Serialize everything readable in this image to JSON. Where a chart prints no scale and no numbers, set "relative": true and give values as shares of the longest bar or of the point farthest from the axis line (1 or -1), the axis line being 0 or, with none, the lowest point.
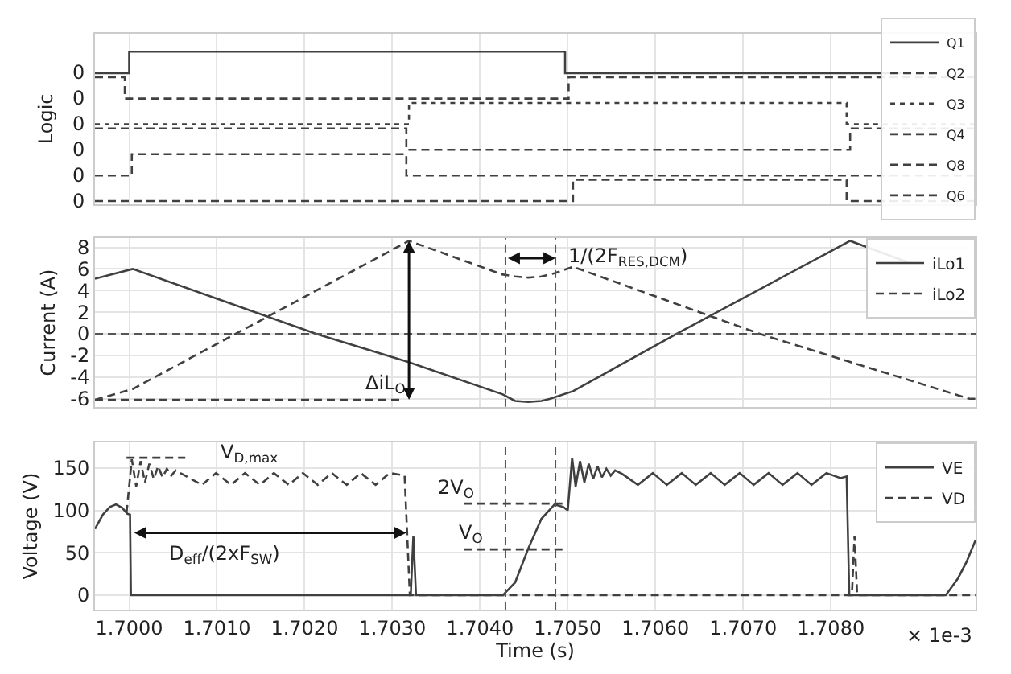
{
  "chart_data": [
    {
      "type": "step",
      "ylabel": "Logic",
      "relative": true,
      "xlim": [
        1.69961,
        1.70965
      ],
      "xticks": [
        {
          "value": 1.7,
          "label": null
        },
        {
          "value": 1.701,
          "label": null
        },
        {
          "value": 1.702,
          "label": null
        },
        {
          "value": 1.703,
          "label": null
        },
        {
          "value": 1.704,
          "label": null
        },
        {
          "value": 1.705,
          "label": null
        },
        {
          "value": 1.706,
          "label": null
        },
        {
          "value": 1.707,
          "label": null
        },
        {
          "value": 1.708,
          "label": null
        }
      ],
      "tick_labels": false,
      "grid": true,
      "legend": "right",
      "series": [
        {
          "name": "Q1",
          "color": "#404040",
          "line_style": "solid",
          "x": [
            1.69961,
            1.7,
            1.70497,
            1.7088
          ],
          "values": [
            0.857,
            1.0,
            0.857,
            0.857
          ]
        },
        {
          "name": "Q2",
          "color": "#404040",
          "line_style": "dashed",
          "x": [
            1.69961,
            1.69995,
            1.70501,
            1.70965
          ],
          "values": [
            0.829,
            0.686,
            0.829,
            0.829
          ]
        },
        {
          "name": "Q3",
          "color": "#404040",
          "line_style": "dotted",
          "x": [
            1.69961,
            1.70319,
            1.70818,
            1.70965
          ],
          "values": [
            0.514,
            0.657,
            0.514,
            0.514
          ]
        },
        {
          "name": "Q4",
          "color": "#404040",
          "line_style": "dashed",
          "x": [
            1.69961,
            1.70316,
            1.70822,
            1.70965
          ],
          "values": [
            0.486,
            0.343,
            0.486,
            0.486
          ]
        },
        {
          "name": "Q8",
          "color": "#404040",
          "line_style": "dashed",
          "x": [
            1.69961,
            1.70003,
            1.70316,
            1.70965
          ],
          "values": [
            0.171,
            0.314,
            0.171,
            0.171
          ]
        },
        {
          "name": "Q6",
          "color": "#404040",
          "line_style": "dashed",
          "x": [
            1.69961,
            1.70506,
            1.70818,
            1.70965
          ],
          "values": [
            0,
            0.143,
            0,
            0
          ]
        }
      ],
      "annotations": [
        "0",
        "0",
        "0",
        "0",
        "0",
        "0"
      ]
    },
    {
      "type": "line",
      "ylabel": "Current (A)",
      "xlim": [
        1.69961,
        1.70965
      ],
      "xticks": [
        {
          "value": 1.7,
          "label": null
        },
        {
          "value": 1.701,
          "label": null
        },
        {
          "value": 1.702,
          "label": null
        },
        {
          "value": 1.703,
          "label": null
        },
        {
          "value": 1.704,
          "label": null
        },
        {
          "value": 1.705,
          "label": null
        },
        {
          "value": 1.706,
          "label": null
        },
        {
          "value": 1.707,
          "label": null
        },
        {
          "value": 1.708,
          "label": null
        }
      ],
      "ylim": [
        -6.75,
        8.85
      ],
      "yticks": [
        -6,
        -4,
        -2,
        0,
        2,
        4,
        6,
        8
      ],
      "tick_labels": "y",
      "grid": true,
      "legend": "top right",
      "series": [
        {
          "name": "iLo1",
          "color": "#404040",
          "line_style": "solid",
          "x": [
            1.69961,
            1.70004,
            1.70213,
            1.70318,
            1.70426,
            1.7044,
            1.70455,
            1.7047,
            1.7048,
            1.70506,
            1.70624,
            1.70822,
            1.70888
          ],
          "values": [
            5.1,
            6.0,
            0,
            -2.6,
            -5.6,
            -6.2,
            -6.3,
            -6.2,
            -6.0,
            -5.3,
            0,
            8.6,
            6.6
          ]
        },
        {
          "name": "iLo2",
          "color": "#404040",
          "line_style": "dashed",
          "x": [
            1.69961,
            1.70004,
            1.70319,
            1.70425,
            1.7044,
            1.70455,
            1.7047,
            1.70485,
            1.70506,
            1.70719,
            1.70822,
            1.70958,
            1.70965
          ],
          "values": [
            -6.1,
            -5.1,
            8.6,
            5.5,
            5.3,
            5.2,
            5.3,
            5.6,
            6.2,
            0,
            -2.6,
            -6.0,
            -6.0
          ]
        },
        {
          "color": "#404040",
          "line_style": "dashed",
          "x": [
            1.69961,
            1.70312
          ],
          "values": [
            -6.1,
            -6.1
          ]
        }
      ],
      "ref_lines": [
        {
          "axis": "y",
          "value": 0,
          "line_style": "dashed"
        },
        {
          "axis": "x",
          "value": 1.70429,
          "line_style": "dashed"
        },
        {
          "axis": "x",
          "value": 1.70486,
          "line_style": "dashed"
        }
      ],
      "annotations": [
        {
          "text": "ΔiL$_{O}$",
          "x": 1.70319,
          "y": 8.6
        },
        {
          "text": "1/(2F$_{RES,DCM}$)",
          "x": 1.70486,
          "y": 7
        }
      ]
    },
    {
      "type": "line",
      "ylabel": "Voltage (V)",
      "xlabel": "Time (s)",
      "xlim": [
        1.69961,
        1.70965
      ],
      "xticks": [
        {
          "value": 1.7,
          "label": "1.7000"
        },
        {
          "value": 1.701,
          "label": "1.7010"
        },
        {
          "value": 1.702,
          "label": "1.7020"
        },
        {
          "value": 1.703,
          "label": "1.7030"
        },
        {
          "value": 1.704,
          "label": "1.7040"
        },
        {
          "value": 1.705,
          "label": "1.7050"
        },
        {
          "value": 1.706,
          "label": "1.7060"
        },
        {
          "value": 1.707,
          "label": "1.7070"
        },
        {
          "value": 1.708,
          "label": "1.7080"
        }
      ],
      "ylim": [
        -17,
        180
      ],
      "yticks": [
        0,
        50,
        100,
        150
      ],
      "grid": true,
      "legend": "top right",
      "series": [
        {
          "name": "VE",
          "color": "#404040",
          "line_style": "solid",
          "x": [
            1.69961,
            1.6997,
            1.69978,
            1.69985,
            1.69992,
            1.69998,
            1.70001,
            1.70002,
            1.70321,
            1.70324,
            1.70327,
            1.70426,
            1.7044,
            1.70455,
            1.7047,
            1.70485,
            1.70495,
            1.705,
            1.70505,
            1.70509,
            1.70514,
            1.70519,
            1.70524,
            1.70529,
            1.70534,
            1.70539,
            1.70544,
            1.70549,
            1.70554,
            1.70562,
            1.7058,
            1.70597,
            1.70613,
            1.7063,
            1.70646,
            1.70663,
            1.70679,
            1.70696,
            1.70712,
            1.70729,
            1.70745,
            1.70762,
            1.70778,
            1.70795,
            1.70811,
            1.70818,
            1.70821,
            1.70931,
            1.70945,
            1.70955,
            1.70965
          ],
          "values": [
            78,
            95,
            104,
            107,
            103,
            96,
            95,
            0,
            0,
            70,
            0,
            0,
            15,
            55,
            90,
            107,
            104,
            100,
            162,
            128,
            158,
            133,
            155,
            137,
            152,
            139,
            149,
            141,
            147,
            143,
            130,
            144,
            130,
            144,
            130,
            144,
            130,
            144,
            130,
            144,
            130,
            144,
            130,
            144,
            138,
            140,
            0,
            0,
            20,
            40,
            65
          ]
        },
        {
          "name": "VD",
          "color": "#404040",
          "line_style": "dashed",
          "x": [
            1.69997,
            1.70003,
            1.70008,
            1.70013,
            1.70018,
            1.70023,
            1.70028,
            1.70033,
            1.70038,
            1.70043,
            1.70048,
            1.70053,
            1.7006,
            1.70083,
            1.70099,
            1.70116,
            1.70132,
            1.70149,
            1.70165,
            1.70182,
            1.70198,
            1.70215,
            1.70231,
            1.70248,
            1.70264,
            1.70281,
            1.70297,
            1.70314,
            1.7032,
            1.70824,
            1.70827,
            1.7083,
            1.70965
          ],
          "values": [
            97,
            160,
            128,
            158,
            133,
            155,
            137,
            152,
            139,
            149,
            141,
            147,
            143,
            130,
            144,
            130,
            144,
            130,
            144,
            130,
            144,
            130,
            144,
            130,
            144,
            130,
            144,
            141,
            0,
            0,
            70,
            0,
            0
          ]
        },
        {
          "color": "#404040",
          "line_style": "dashed",
          "x": [
            1.69997,
            1.70064
          ],
          "values": [
            162,
            162
          ]
        },
        {
          "color": "#404040",
          "line_style": "dashed",
          "x": [
            1.70382,
            1.70499
          ],
          "values": [
            108,
            108
          ]
        },
        {
          "color": "#404040",
          "line_style": "dashed",
          "x": [
            1.70382,
            1.70494
          ],
          "values": [
            54,
            54
          ]
        }
      ],
      "ref_lines": [
        {
          "axis": "x",
          "value": 1.70429,
          "line_style": "dashed"
        },
        {
          "axis": "x",
          "value": 1.70486,
          "line_style": "dashed"
        }
      ],
      "annotations": [
        "V$_{D,max}$",
        "D$_{eff}$/(2xF$_{SW}$)",
        "2V$_{O}$",
        "V$_{O}$",
        "× 1e-3"
      ]
    }
  ]
}
